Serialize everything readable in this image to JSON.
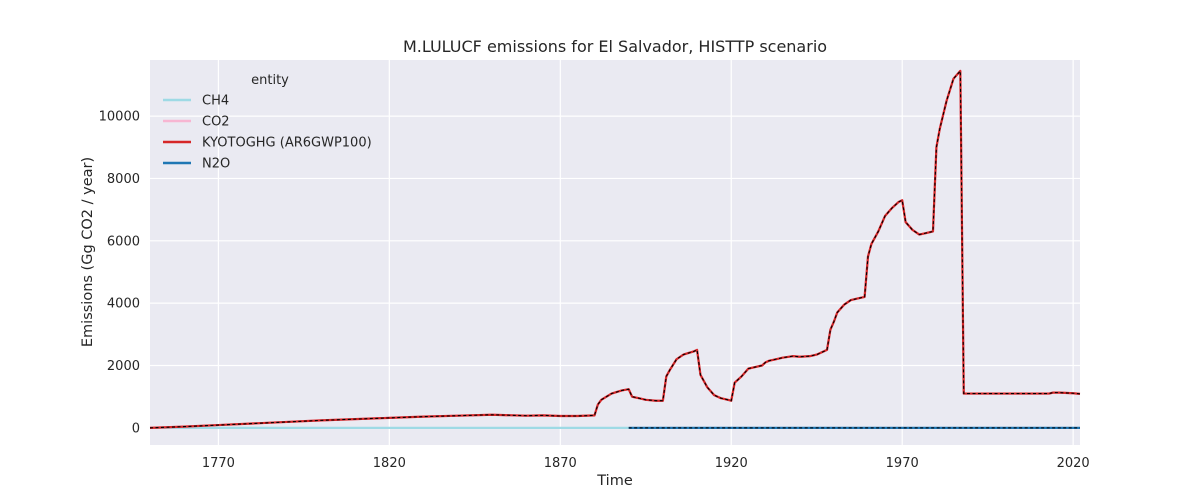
{
  "chart_data": {
    "type": "line",
    "title": "M.LULUCF emissions for El Salvador, HISTTP scenario",
    "xlabel": "Time",
    "ylabel": "Emissions (Gg CO2 / year)",
    "xlim": [
      1750,
      2022
    ],
    "ylim": [
      -550,
      11800
    ],
    "xticks": [
      1770,
      1820,
      1870,
      1920,
      1970,
      2020
    ],
    "yticks": [
      0,
      2000,
      4000,
      6000,
      8000,
      10000
    ],
    "grid": true,
    "background": "#eaeaf2",
    "legend": {
      "title": "entity",
      "position": "top-left",
      "entries": [
        "CH4",
        "CO2",
        "KYOTOGHG (AR6GWP100)",
        "N2O"
      ]
    },
    "series": [
      {
        "name": "CH4",
        "color": "#9edae5",
        "x": [
          1750,
          1890
        ],
        "y": [
          0,
          0
        ]
      },
      {
        "name": "CO2",
        "color": "#f7b6d2",
        "x": [
          1750,
          1760,
          1770,
          1780,
          1790,
          1800,
          1810,
          1820,
          1830,
          1840,
          1850,
          1860,
          1865,
          1870,
          1875,
          1880,
          1881,
          1882,
          1885,
          1888,
          1890,
          1891,
          1893,
          1895,
          1898,
          1900,
          1901,
          1902,
          1904,
          1906,
          1909,
          1910,
          1911,
          1913,
          1915,
          1917,
          1919,
          1920,
          1921,
          1923,
          1925,
          1927,
          1929,
          1930,
          1931,
          1933,
          1935,
          1938,
          1940,
          1943,
          1945,
          1948,
          1949,
          1950,
          1951,
          1953,
          1955,
          1957,
          1959,
          1960,
          1961,
          1963,
          1965,
          1967,
          1969,
          1970,
          1971,
          1973,
          1975,
          1977,
          1979,
          1980,
          1981,
          1983,
          1985,
          1987,
          1988,
          1990,
          2000,
          2010,
          2013,
          2014,
          2016,
          2020,
          2022
        ],
        "y": [
          0,
          40,
          90,
          140,
          190,
          240,
          280,
          320,
          360,
          390,
          420,
          390,
          400,
          380,
          380,
          400,
          750,
          900,
          1100,
          1200,
          1240,
          1000,
          950,
          900,
          870,
          870,
          1650,
          1850,
          2200,
          2350,
          2450,
          2500,
          1700,
          1300,
          1050,
          950,
          900,
          870,
          1450,
          1650,
          1900,
          1950,
          2000,
          2100,
          2150,
          2200,
          2250,
          2300,
          2280,
          2300,
          2350,
          2500,
          3150,
          3400,
          3700,
          3950,
          4100,
          4150,
          4200,
          5500,
          5900,
          6300,
          6800,
          7050,
          7250,
          7300,
          6600,
          6350,
          6200,
          6250,
          6300,
          9000,
          9600,
          10500,
          11200,
          11450,
          1100,
          1100,
          1100,
          1100,
          1100,
          1130,
          1130,
          1110,
          1090
        ]
      },
      {
        "name": "KYOTOGHG (AR6GWP100)",
        "color": "#d62728",
        "x": [
          1750,
          1760,
          1770,
          1780,
          1790,
          1800,
          1810,
          1820,
          1830,
          1840,
          1850,
          1860,
          1865,
          1870,
          1875,
          1880,
          1881,
          1882,
          1885,
          1888,
          1890,
          1891,
          1893,
          1895,
          1898,
          1900,
          1901,
          1902,
          1904,
          1906,
          1909,
          1910,
          1911,
          1913,
          1915,
          1917,
          1919,
          1920,
          1921,
          1923,
          1925,
          1927,
          1929,
          1930,
          1931,
          1933,
          1935,
          1938,
          1940,
          1943,
          1945,
          1948,
          1949,
          1950,
          1951,
          1953,
          1955,
          1957,
          1959,
          1960,
          1961,
          1963,
          1965,
          1967,
          1969,
          1970,
          1971,
          1973,
          1975,
          1977,
          1979,
          1980,
          1981,
          1983,
          1985,
          1987,
          1988,
          1990,
          2000,
          2010,
          2013,
          2014,
          2016,
          2020,
          2022
        ],
        "y": [
          0,
          40,
          90,
          140,
          190,
          240,
          280,
          320,
          360,
          390,
          420,
          390,
          400,
          380,
          380,
          400,
          750,
          900,
          1100,
          1200,
          1240,
          1000,
          950,
          900,
          870,
          870,
          1650,
          1850,
          2200,
          2350,
          2450,
          2500,
          1700,
          1300,
          1050,
          950,
          900,
          870,
          1450,
          1650,
          1900,
          1950,
          2000,
          2100,
          2150,
          2200,
          2250,
          2300,
          2280,
          2300,
          2350,
          2500,
          3150,
          3400,
          3700,
          3950,
          4100,
          4150,
          4200,
          5500,
          5900,
          6300,
          6800,
          7050,
          7250,
          7300,
          6600,
          6350,
          6200,
          6250,
          6300,
          9000,
          9600,
          10500,
          11200,
          11450,
          1100,
          1100,
          1100,
          1100,
          1100,
          1130,
          1130,
          1110,
          1090
        ]
      },
      {
        "name": "N2O",
        "color": "#1f77b4",
        "x": [
          1890,
          2022
        ],
        "y": [
          0,
          0
        ]
      }
    ]
  }
}
